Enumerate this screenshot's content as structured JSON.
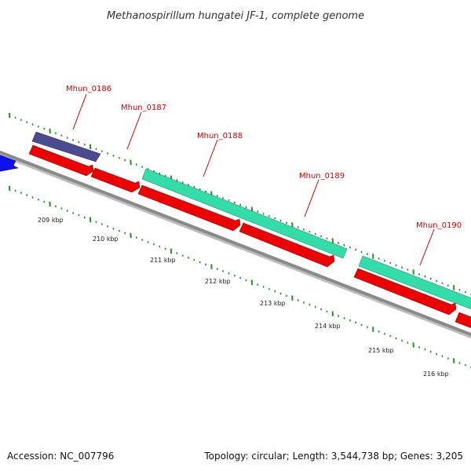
{
  "title": "Methanospirillum hungatei JF-1, complete genome",
  "footer": {
    "accession": "Accession: NC_007796",
    "summary": "Topology: circular; Length: 3,544,738 bp; Genes: 3,205"
  },
  "colors": {
    "backbone": "#777777",
    "cds_forward": "#ee0000",
    "gene_forward": "#33ddaa",
    "gene_other": "#4a4a8c",
    "blue_feature": "#0000ee",
    "ticks": "#2a8a2a",
    "label": "#cc0000"
  },
  "genes": [
    {
      "label": "Mhun_0186"
    },
    {
      "label": "Mhun_0187"
    },
    {
      "label": "Mhun_0188"
    },
    {
      "label": "Mhun_0189"
    },
    {
      "label": "Mhun_0190"
    }
  ],
  "scale_ticks": [
    "209 kbp",
    "210 kbp",
    "211 kbp",
    "212 kbp",
    "213 kbp",
    "214 kbp",
    "215 kbp",
    "216 kbp"
  ]
}
